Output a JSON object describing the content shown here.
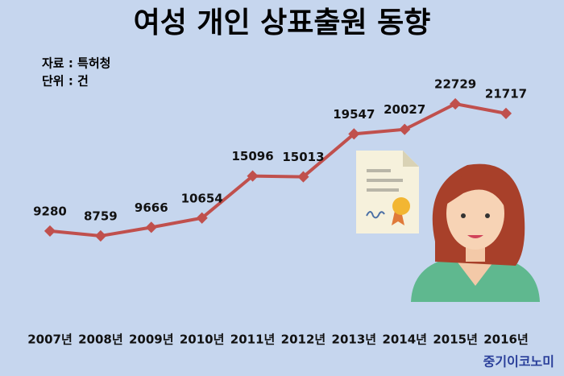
{
  "chart_data": {
    "type": "line",
    "title": "여성 개인 상표출원 동향",
    "source": "자료 : 특허청",
    "unit": "단위 : 건",
    "watermark": "중기이코노미",
    "categories": [
      "2007년",
      "2008년",
      "2009년",
      "2010년",
      "2011년",
      "2012년",
      "2013년",
      "2014년",
      "2015년",
      "2016년"
    ],
    "values": [
      9280,
      8759,
      9666,
      10654,
      15096,
      15013,
      19547,
      20027,
      22729,
      21717
    ],
    "color": "#c0504d"
  }
}
